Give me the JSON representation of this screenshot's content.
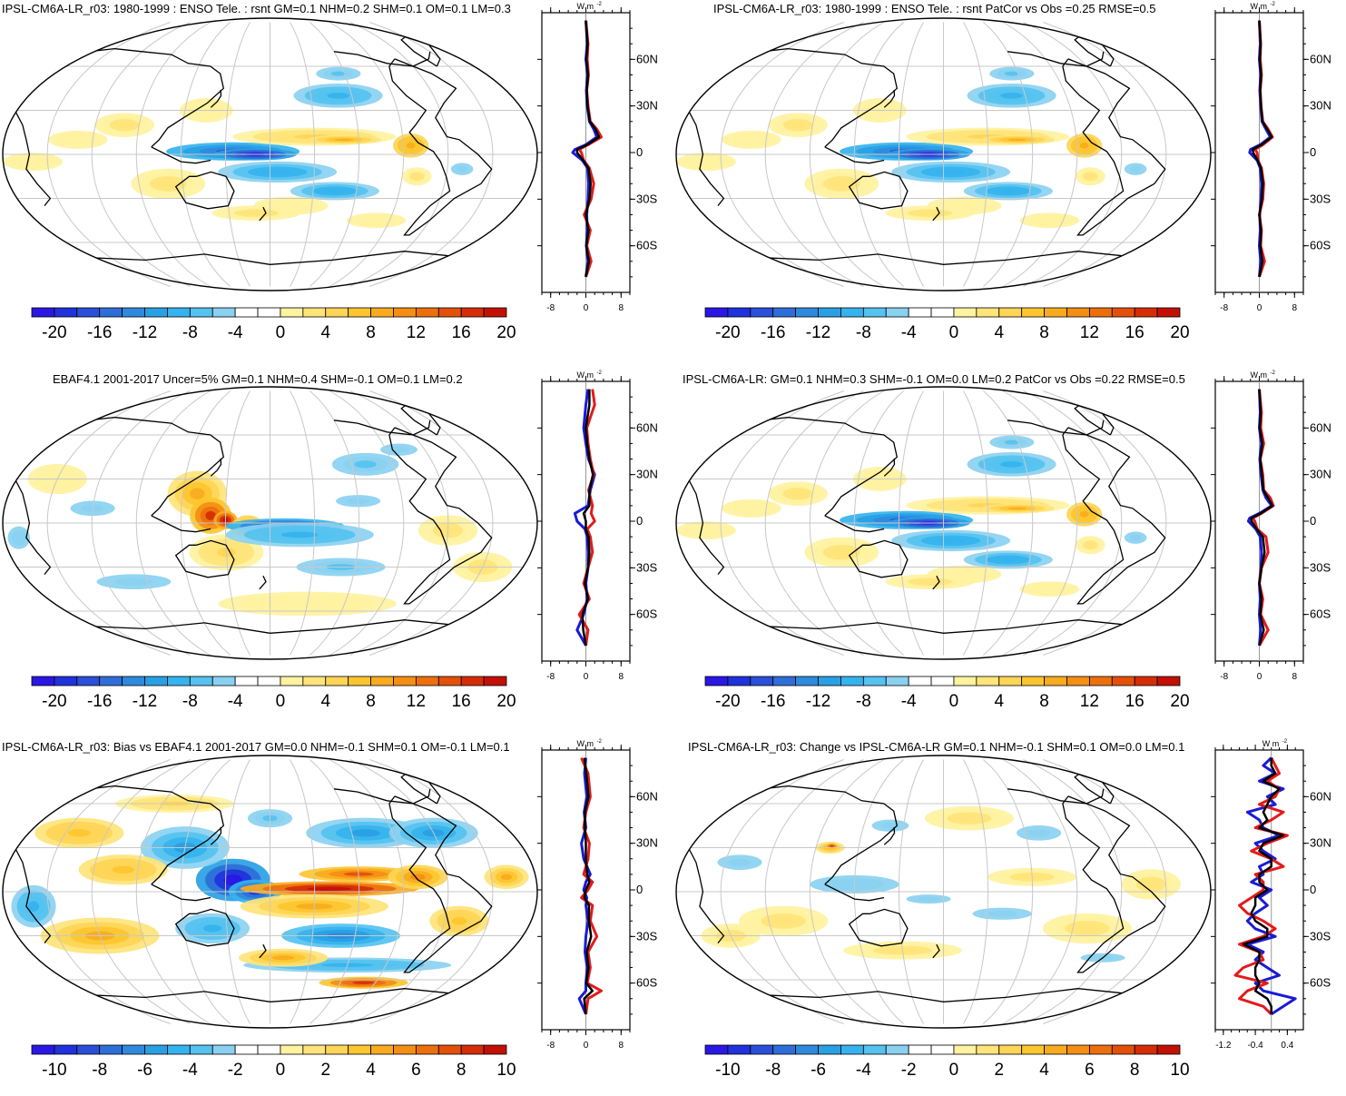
{
  "palettes": {
    "wide": [
      "#2a17e4",
      "#1f32db",
      "#2a4fd8",
      "#2e6ed8",
      "#2f8ade",
      "#29a0e4",
      "#35b3ee",
      "#55c2f0",
      "#8ad1f1",
      "#ffffff",
      "#ffffff",
      "#fff2a0",
      "#ffe47a",
      "#fed556",
      "#fdc52e",
      "#f9ab20",
      "#f48e14",
      "#ec6f0d",
      "#e3500a",
      "#d52d07",
      "#c31005"
    ],
    "line_colors": {
      "model": "#e31a1c",
      "ref": "#1a1ad6",
      "mean": "#000000"
    }
  },
  "panels": [
    {
      "title": "IPSL-CM6A-LR_r03: 1980-1999 : ENSO Tele. : rsnt GM=0.1 NHM=0.2 SHM=0.1 OM=0.1 LM=0.3",
      "title_align": "left",
      "colorbar_labels": [
        "-20",
        "-16",
        "-12",
        "-8",
        "-4",
        "0",
        "4",
        "8",
        "12",
        "16",
        "20"
      ],
      "zonal_ticks": [
        "-8",
        "0",
        "8"
      ],
      "zonal_unit": "W m",
      "zonal_unit_exp": "-2",
      "lat_ticks": [
        "60N",
        "30N",
        "0",
        "30S",
        "60S"
      ],
      "chart_data": {
        "type": "heatmap",
        "lat_ticks": [
          60,
          30,
          0,
          -30,
          -60
        ],
        "zonal_xlim": [
          -10,
          10
        ],
        "colorbar_range": [
          -22,
          22
        ],
        "pattern": "enso",
        "zonal_profile": {
          "lat": [
            85,
            70,
            60,
            50,
            40,
            30,
            20,
            15,
            10,
            5,
            2,
            0,
            -5,
            -10,
            -20,
            -30,
            -40,
            -50,
            -60,
            -70,
            -80
          ],
          "model": [
            0,
            0.5,
            0.3,
            0.6,
            0.2,
            0.5,
            1.0,
            2.5,
            3.5,
            0.5,
            -1.5,
            -1.0,
            -0.5,
            0.8,
            1.8,
            1.2,
            -0.4,
            1.0,
            0.2,
            1.2,
            0
          ],
          "ref": [
            0,
            0.3,
            0.0,
            0.4,
            0.1,
            0.3,
            0.8,
            1.8,
            2.5,
            0,
            -2.5,
            -3,
            -0.8,
            0.4,
            0.6,
            0.5,
            0.2,
            0.3,
            0.1,
            0.5,
            0
          ],
          "mean": [
            0,
            0.4,
            0.1,
            0.5,
            0.2,
            0.4,
            0.9,
            2.2,
            3.0,
            0.3,
            -2,
            -2,
            -0.6,
            0.6,
            1.1,
            0.8,
            0,
            0.6,
            0.1,
            0.7,
            0
          ]
        }
      }
    },
    {
      "title": "IPSL-CM6A-LR_r03: 1980-1999 : ENSO Tele. : rsnt PatCor vs Obs =0.25 RMSE=0.5",
      "title_align": "left",
      "colorbar_labels": [
        "-20",
        "-16",
        "-12",
        "-8",
        "-4",
        "0",
        "4",
        "8",
        "12",
        "16",
        "20"
      ],
      "zonal_ticks": [
        "-8",
        "0",
        "8"
      ],
      "zonal_unit": "W m",
      "zonal_unit_exp": "-2",
      "lat_ticks": [
        "60N",
        "30N",
        "0",
        "30S",
        "60S"
      ],
      "chart_data": {
        "type": "heatmap",
        "lat_ticks": [
          60,
          30,
          0,
          -30,
          -60
        ],
        "zonal_xlim": [
          -10,
          10
        ],
        "colorbar_range": [
          -22,
          22
        ],
        "pattern": "enso",
        "zonal_profile": {
          "lat": [
            85,
            70,
            60,
            50,
            40,
            30,
            20,
            15,
            10,
            5,
            2,
            0,
            -5,
            -10,
            -20,
            -30,
            -40,
            -50,
            -60,
            -70,
            -80
          ],
          "model": [
            0,
            0.3,
            0.2,
            0.5,
            0.2,
            0.4,
            0.8,
            2.0,
            3.0,
            0.8,
            -1.0,
            -0.5,
            -0.3,
            0.5,
            1.0,
            0.8,
            0,
            0.5,
            0.3,
            1.2,
            0
          ],
          "ref": [
            0,
            0.2,
            0.0,
            0.3,
            0.1,
            0.3,
            0.6,
            1.5,
            2.5,
            0.2,
            -2,
            -2.2,
            -0.5,
            0.2,
            0.5,
            0.4,
            0.1,
            0.2,
            0,
            0.3,
            0
          ],
          "mean": [
            0,
            0.3,
            0.1,
            0.4,
            0.2,
            0.4,
            0.7,
            1.8,
            2.8,
            0.5,
            -1.5,
            -1.4,
            -0.4,
            0.4,
            0.8,
            0.6,
            0,
            0.4,
            0.2,
            0.7,
            0
          ]
        }
      }
    },
    {
      "title": "EBAF4.1 2001-2017 Uncer=5% GM=0.1 NHM=0.4 SHM=-0.1 OM=0.1 LM=0.2",
      "title_align": "center",
      "colorbar_labels": [
        "-20",
        "-16",
        "-12",
        "-8",
        "-4",
        "0",
        "4",
        "8",
        "12",
        "16",
        "20"
      ],
      "zonal_ticks": [
        "-8",
        "0",
        "8"
      ],
      "zonal_unit": "W m",
      "zonal_unit_exp": "-2",
      "lat_ticks": [
        "60N",
        "30N",
        "0",
        "30S",
        "60S"
      ],
      "chart_data": {
        "type": "heatmap",
        "lat_ticks": [
          60,
          30,
          0,
          -30,
          -60
        ],
        "zonal_xlim": [
          -10,
          10
        ],
        "colorbar_range": [
          -22,
          22
        ],
        "pattern": "obs",
        "zonal_profile": {
          "lat": [
            85,
            75,
            60,
            50,
            40,
            30,
            20,
            10,
            5,
            0,
            -5,
            -10,
            -20,
            -30,
            -40,
            -50,
            -60,
            -70,
            -80
          ],
          "model": [
            1.5,
            2.0,
            0.2,
            0.5,
            1.0,
            1.8,
            0.6,
            1.5,
            1.2,
            2.0,
            0.3,
            1.0,
            1.5,
            0.5,
            -0.5,
            0.8,
            -1.5,
            0.5,
            0
          ],
          "ref": [
            0.5,
            0.0,
            -0.5,
            0,
            0.6,
            2.0,
            1.0,
            0.5,
            -2.5,
            -2.0,
            -0.2,
            0.3,
            0.5,
            0.5,
            0,
            0.3,
            -0.5,
            -2.0,
            0
          ],
          "mean": [
            0.8,
            0.8,
            0,
            0.3,
            0.8,
            1.6,
            0.8,
            0.8,
            -0.5,
            0,
            0,
            0.6,
            0.8,
            0.5,
            -0.2,
            0.5,
            -0.8,
            -0.6,
            0
          ]
        }
      }
    },
    {
      "title": "IPSL-CM6A-LR: GM=0.1 NHM=0.3 SHM=-0.1 OM=0.0 LM=0.2 PatCor vs Obs =0.22 RMSE=0.5",
      "title_align": "center",
      "colorbar_labels": [
        "-20",
        "-16",
        "-12",
        "-8",
        "-4",
        "0",
        "4",
        "8",
        "12",
        "16",
        "20"
      ],
      "zonal_ticks": [
        "-8",
        "0",
        "8"
      ],
      "zonal_unit": "W m",
      "zonal_unit_exp": "-2",
      "lat_ticks": [
        "60N",
        "30N",
        "0",
        "30S",
        "60S"
      ],
      "chart_data": {
        "type": "heatmap",
        "lat_ticks": [
          60,
          30,
          0,
          -30,
          -60
        ],
        "zonal_xlim": [
          -10,
          10
        ],
        "colorbar_range": [
          -22,
          22
        ],
        "pattern": "enso",
        "zonal_profile": {
          "lat": [
            85,
            70,
            60,
            50,
            40,
            30,
            20,
            15,
            10,
            5,
            2,
            0,
            -5,
            -10,
            -20,
            -30,
            -40,
            -50,
            -60,
            -70,
            -80
          ],
          "model": [
            0,
            0.5,
            0.3,
            1.0,
            0.2,
            0.8,
            1.0,
            2.5,
            3.2,
            0.5,
            -1.5,
            -1.0,
            -0.5,
            1.5,
            2.0,
            0.5,
            0,
            0.8,
            0.3,
            2.0,
            0
          ],
          "ref": [
            0,
            0.2,
            0,
            0.5,
            0.1,
            0.4,
            0.8,
            1.5,
            2.8,
            0,
            -2.2,
            -2.5,
            -0.8,
            0.2,
            0.5,
            0.4,
            0,
            0.2,
            0,
            0.3,
            0
          ],
          "mean": [
            0,
            0.3,
            0.1,
            0.7,
            0.2,
            0.6,
            0.9,
            2.0,
            3.0,
            0.3,
            -1.8,
            -1.8,
            -0.6,
            0.8,
            1.2,
            0.5,
            0,
            0.5,
            0.2,
            1.0,
            0
          ]
        }
      }
    },
    {
      "title": "IPSL-CM6A-LR_r03: Bias vs EBAF4.1 2001-2017 GM=0.0 NHM=-0.1 SHM=0.1 OM=-0.1 LM=0.1",
      "title_align": "left",
      "colorbar_labels": [
        "-10",
        "-8",
        "-6",
        "-4",
        "-2",
        "0",
        "2",
        "4",
        "6",
        "8",
        "10"
      ],
      "zonal_ticks": [
        "-8",
        "0",
        "8"
      ],
      "zonal_unit": "W m",
      "zonal_unit_exp": "-2",
      "lat_ticks": [
        "60N",
        "30N",
        "0",
        "30S",
        "60S"
      ],
      "chart_data": {
        "type": "heatmap",
        "lat_ticks": [
          60,
          30,
          0,
          -30,
          -60
        ],
        "zonal_xlim": [
          -10,
          10
        ],
        "colorbar_range": [
          -11,
          11
        ],
        "pattern": "bias",
        "zonal_profile": {
          "lat": [
            85,
            75,
            60,
            50,
            40,
            30,
            20,
            10,
            5,
            0,
            -5,
            -10,
            -20,
            -30,
            -40,
            -50,
            -60,
            -65,
            -70,
            -80
          ],
          "model": [
            -1.0,
            0.5,
            1.0,
            0,
            -0.5,
            0.8,
            0.5,
            -0.5,
            1.5,
            0.5,
            -1.0,
            1.5,
            1.0,
            2.5,
            0.5,
            1.0,
            0.3,
            3.5,
            0.5,
            0
          ],
          "ref": [
            0,
            -0.3,
            0.2,
            -0.4,
            0,
            -1.0,
            -0.5,
            1.0,
            0,
            -0.5,
            0.2,
            0,
            0.5,
            0,
            -0.2,
            0.3,
            0,
            0,
            -1.5,
            0
          ],
          "mean": [
            -0.3,
            0.1,
            0.6,
            -0.2,
            -0.2,
            0,
            0,
            0.3,
            0.8,
            0,
            -0.3,
            0.7,
            0.7,
            1.2,
            0.2,
            0.6,
            0.1,
            1.5,
            -0.4,
            0
          ]
        }
      }
    },
    {
      "title": "IPSL-CM6A-LR_r03: Change vs IPSL-CM6A-LR GM=0.1 NHM=-0.1 SHM=0.1 OM=0.0 LM=0.1",
      "title_align": "center",
      "colorbar_labels": [
        "-10",
        "-8",
        "-6",
        "-4",
        "-2",
        "0",
        "2",
        "4",
        "6",
        "8",
        "10"
      ],
      "zonal_ticks": [
        "-1.2",
        "-0.4",
        "0.4"
      ],
      "zonal_unit": "W m",
      "zonal_unit_exp": "-2",
      "lat_ticks": [
        "60N",
        "30N",
        "0",
        "30S",
        "60S"
      ],
      "chart_data": {
        "type": "heatmap",
        "lat_ticks": [
          60,
          30,
          0,
          -30,
          -60
        ],
        "zonal_xlim": [
          -1.4,
          0.8
        ],
        "colorbar_range": [
          -11,
          11
        ],
        "pattern": "change",
        "zonal_profile": {
          "lat": [
            85,
            80,
            75,
            70,
            65,
            60,
            55,
            50,
            45,
            40,
            35,
            30,
            25,
            20,
            15,
            10,
            5,
            0,
            -5,
            -10,
            -15,
            -20,
            -25,
            -30,
            -35,
            -40,
            -45,
            -50,
            -55,
            -60,
            -65,
            -70,
            -75,
            -80
          ],
          "model": [
            0,
            0.1,
            0.2,
            -0.1,
            0.2,
            0.1,
            -0.3,
            0.3,
            0,
            -0.4,
            0.4,
            -0.1,
            -0.5,
            0,
            0.3,
            -0.4,
            -0.2,
            -0.2,
            -0.5,
            -0.8,
            -0.6,
            -0.2,
            0.1,
            -0.2,
            -0.8,
            -0.3,
            -0.2,
            -0.7,
            -0.9,
            -0.1,
            -0.6,
            -0.8,
            -0.2,
            0
          ],
          "ref": [
            0,
            -0.2,
            0.1,
            -0.3,
            0.3,
            -0.1,
            0.1,
            -0.6,
            -0.3,
            -0.2,
            0.2,
            -0.4,
            -0.2,
            0.1,
            -0.3,
            -0.2,
            -0.5,
            0,
            -0.3,
            -0.1,
            -0.4,
            -0.6,
            -0.4,
            0.1,
            -0.6,
            -0.2,
            -0.4,
            -0.1,
            0.2,
            -0.4,
            -0.2,
            0.6,
            0.3,
            0
          ],
          "mean": [
            0,
            0,
            0.1,
            -0.2,
            0.2,
            0,
            -0.1,
            -0.2,
            -0.1,
            -0.3,
            0.3,
            -0.2,
            -0.3,
            0,
            0,
            -0.3,
            -0.3,
            -0.1,
            -0.4,
            -0.4,
            -0.5,
            -0.4,
            -0.1,
            -0.1,
            -0.7,
            -0.3,
            -0.3,
            -0.4,
            -0.4,
            -0.3,
            -0.4,
            -0.1,
            0,
            0
          ]
        }
      }
    }
  ]
}
